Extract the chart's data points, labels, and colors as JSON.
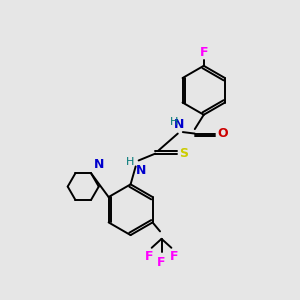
{
  "bg_color": "#e6e6e6",
  "atom_colors": {
    "C": "#000000",
    "N": "#0000cc",
    "O": "#cc0000",
    "S": "#cccc00",
    "F": "#ff00ff",
    "H": "#007777"
  },
  "figsize": [
    3.0,
    3.0
  ],
  "dpi": 100
}
